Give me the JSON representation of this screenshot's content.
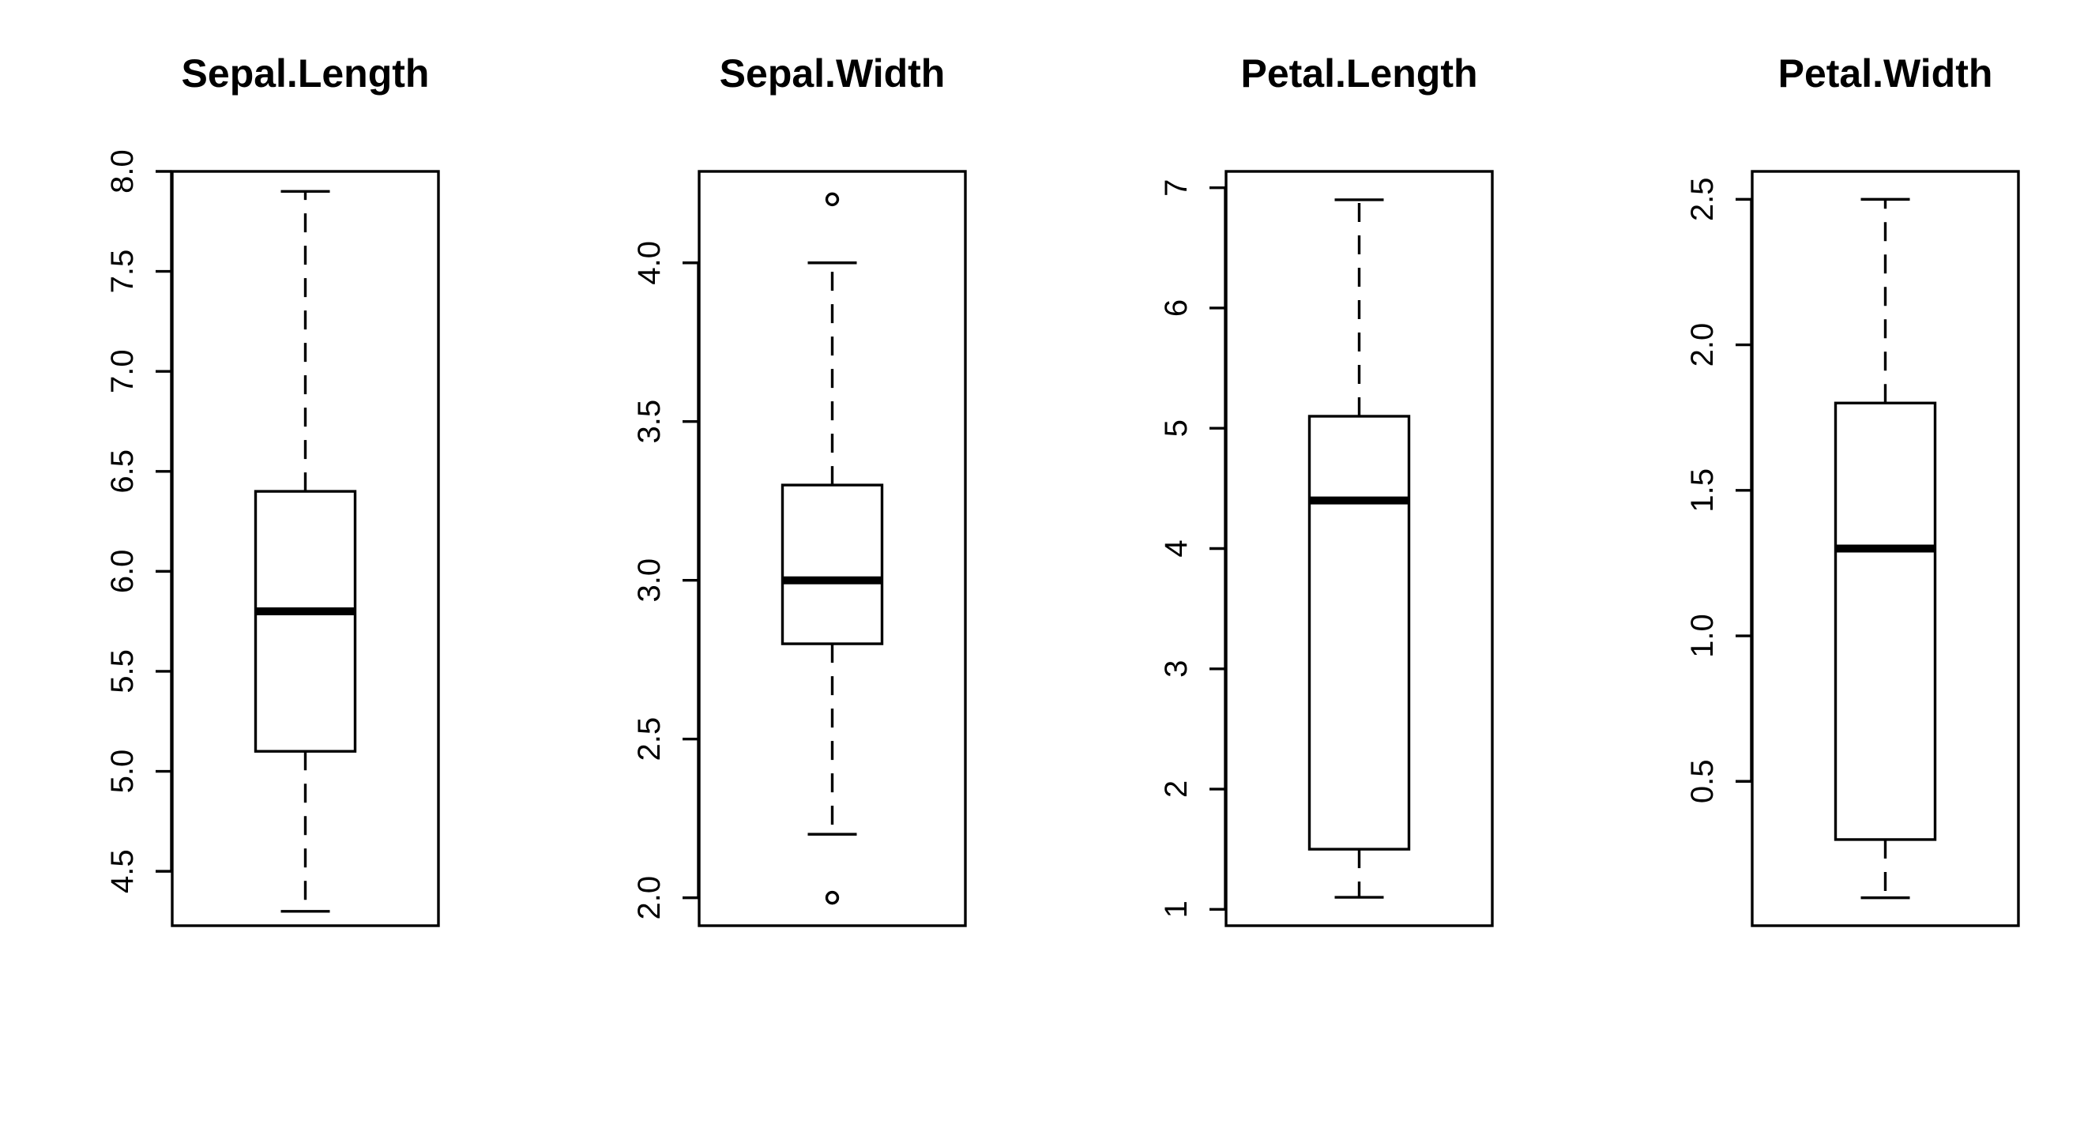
{
  "chart_data": [
    {
      "type": "box",
      "title": "Sepal.Length",
      "ylim": [
        4.228,
        8.0
      ],
      "ticks": [
        {
          "value": 4.5,
          "label": "4.5"
        },
        {
          "value": 5.0,
          "label": "5.0"
        },
        {
          "value": 5.5,
          "label": "5.5"
        },
        {
          "value": 6.0,
          "label": "6.0"
        },
        {
          "value": 6.5,
          "label": "6.5"
        },
        {
          "value": 7.0,
          "label": "7.0"
        },
        {
          "value": 7.5,
          "label": "7.5"
        },
        {
          "value": 8.0,
          "label": "8.0"
        }
      ],
      "whisker_low": 4.3,
      "q1": 5.1,
      "median": 5.8,
      "q3": 6.4,
      "whisker_high": 7.9,
      "outliers": []
    },
    {
      "type": "box",
      "title": "Sepal.Width",
      "ylim": [
        1.912,
        4.288
      ],
      "ticks": [
        {
          "value": 2.0,
          "label": "2.0"
        },
        {
          "value": 2.5,
          "label": "2.5"
        },
        {
          "value": 3.0,
          "label": "3.0"
        },
        {
          "value": 3.5,
          "label": "3.5"
        },
        {
          "value": 4.0,
          "label": "4.0"
        }
      ],
      "whisker_low": 2.2,
      "q1": 2.8,
      "median": 3.0,
      "q3": 3.3,
      "whisker_high": 4.0,
      "outliers": [
        2.0,
        4.2
      ]
    },
    {
      "type": "box",
      "title": "Petal.Length",
      "ylim": [
        0.864,
        7.136
      ],
      "ticks": [
        {
          "value": 1,
          "label": "1"
        },
        {
          "value": 2,
          "label": "2"
        },
        {
          "value": 3,
          "label": "3"
        },
        {
          "value": 4,
          "label": "4"
        },
        {
          "value": 5,
          "label": "5"
        },
        {
          "value": 6,
          "label": "6"
        },
        {
          "value": 7,
          "label": "7"
        }
      ],
      "whisker_low": 1.1,
      "q1": 1.5,
      "median": 4.4,
      "q3": 5.1,
      "whisker_high": 6.9,
      "outliers": []
    },
    {
      "type": "box",
      "title": "Petal.Width",
      "ylim": [
        0.004,
        2.596
      ],
      "ticks": [
        {
          "value": 0.5,
          "label": "0.5"
        },
        {
          "value": 1.0,
          "label": "1.0"
        },
        {
          "value": 1.5,
          "label": "1.5"
        },
        {
          "value": 2.0,
          "label": "2.0"
        },
        {
          "value": 2.5,
          "label": "2.5"
        }
      ],
      "whisker_low": 0.1,
      "q1": 0.3,
      "median": 1.3,
      "q3": 1.8,
      "whisker_high": 2.5,
      "outliers": []
    }
  ]
}
